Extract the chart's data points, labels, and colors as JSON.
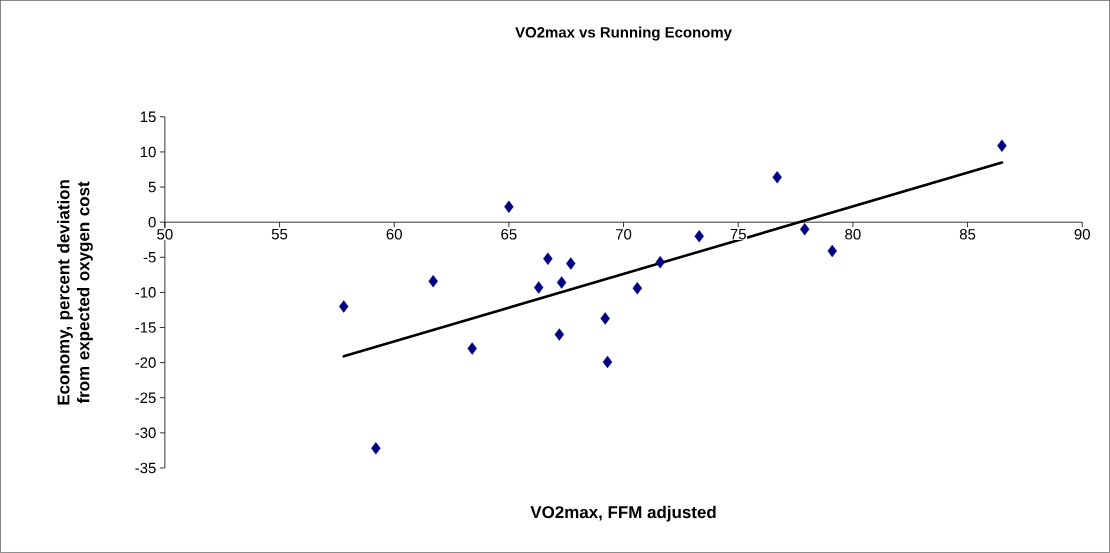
{
  "chart_data": {
    "type": "scatter",
    "title": "VO2max vs Running Economy",
    "xlabel": "VO2max, FFM adjusted",
    "ylabel": "Economy, percent deviation from expected oxygen cost",
    "xlim": [
      50,
      90
    ],
    "xticks": [
      50,
      55,
      60,
      65,
      70,
      75,
      80,
      85,
      90
    ],
    "ylim": [
      -35,
      15
    ],
    "yticks": [
      -35,
      -30,
      -25,
      -20,
      -15,
      -10,
      -5,
      0,
      5,
      10,
      15
    ],
    "grid": false,
    "series": [
      {
        "color": "#000080",
        "marker": "diamond",
        "x": [
          57.8,
          59.2,
          61.7,
          63.4,
          65.0,
          66.3,
          66.7,
          67.2,
          67.3,
          67.7,
          69.2,
          69.3,
          70.6,
          71.6,
          73.3,
          76.7,
          77.9,
          79.1,
          86.5
        ],
        "values": [
          -12.0,
          -32.2,
          -8.4,
          -18.0,
          2.2,
          -9.3,
          -5.2,
          -16.0,
          -8.6,
          -5.9,
          -13.7,
          -19.9,
          -9.4,
          -5.7,
          -2.0,
          6.4,
          -1.0,
          -4.1,
          10.9
        ]
      },
      {
        "type": "line",
        "color": "#000000",
        "marker": "none",
        "x": [
          57.8,
          86.5
        ],
        "values": [
          -19.1,
          8.5
        ]
      }
    ]
  }
}
